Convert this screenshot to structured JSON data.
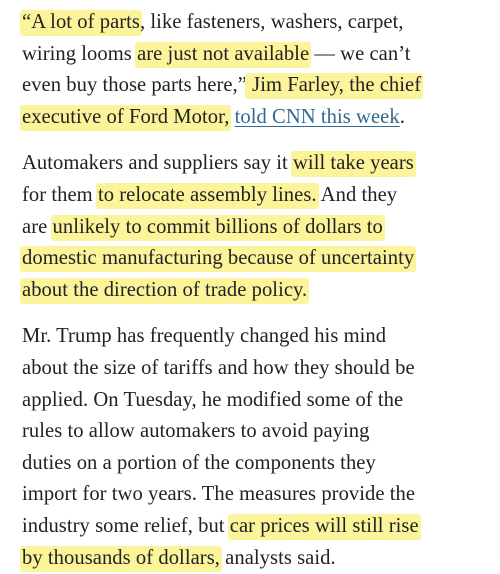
{
  "highlight_color": "#fbf49a",
  "link_color": "#326891",
  "paragraphs": [
    {
      "lines": [
        [
          {
            "t": "“A lot of parts",
            "h": true
          },
          {
            "t": ", like fasteners, washers, carpet,",
            "h": false
          }
        ],
        [
          {
            "t": "wiring looms ",
            "h": false
          },
          {
            "t": "are just not available",
            "h": true
          },
          {
            "t": " — we can’t",
            "h": false
          }
        ],
        [
          {
            "t": "even buy those parts here,”",
            "h": false
          },
          {
            "t": " Jim Farley, the chief",
            "h": true
          }
        ],
        [
          {
            "t": "executive of Ford Motor,",
            "h": true
          },
          {
            "t": " ",
            "h": false
          },
          {
            "t": "told CNN this week",
            "h": false,
            "link": true
          },
          {
            "t": ".",
            "h": false
          }
        ]
      ]
    },
    {
      "lines": [
        [
          {
            "t": "Automakers and suppliers say it ",
            "h": false
          },
          {
            "t": "will take years",
            "h": true
          }
        ],
        [
          {
            "t": "for them ",
            "h": false
          },
          {
            "t": "to relocate assembly lines.",
            "h": true
          },
          {
            "t": " And they",
            "h": false
          }
        ],
        [
          {
            "t": "are ",
            "h": false
          },
          {
            "t": "unlikely to commit billions of dollars to",
            "h": true
          }
        ],
        [
          {
            "t": "domestic manufacturing because of uncertainty",
            "h": true
          }
        ],
        [
          {
            "t": "about the direction of trade policy.",
            "h": true
          }
        ]
      ]
    },
    {
      "lines": [
        [
          {
            "t": "Mr. Trump has frequently changed his mind",
            "h": false
          }
        ],
        [
          {
            "t": "about the size of tariffs and how they should be",
            "h": false
          }
        ],
        [
          {
            "t": "applied. On Tuesday, he modified some of the",
            "h": false
          }
        ],
        [
          {
            "t": "rules to allow automakers to avoid paying",
            "h": false
          }
        ],
        [
          {
            "t": "duties on a portion of the components they",
            "h": false
          }
        ],
        [
          {
            "t": "import for two years. The measures provide the",
            "h": false
          }
        ],
        [
          {
            "t": "industry some relief, but ",
            "h": false
          },
          {
            "t": "car prices will still rise",
            "h": true
          }
        ],
        [
          {
            "t": "by thousands of dollars,",
            "h": true
          },
          {
            "t": " analysts said.",
            "h": false
          }
        ]
      ]
    }
  ]
}
